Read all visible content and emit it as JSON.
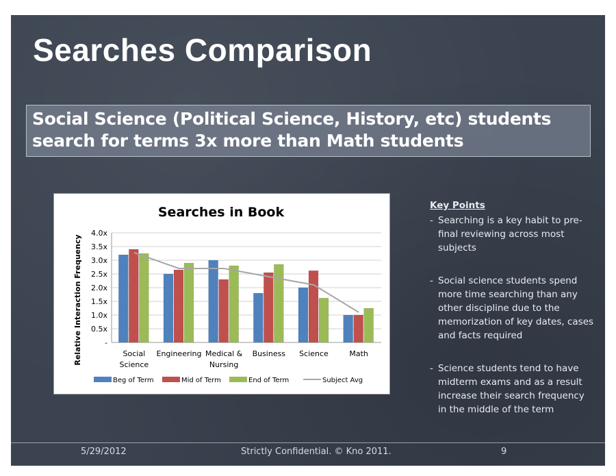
{
  "slide": {
    "title": "Searches Comparison",
    "subtitle_line1": "Social Science (Political Science, History, etc) students",
    "subtitle_line2": "search for terms 3x more than Math students"
  },
  "chart_data": {
    "type": "bar",
    "title": "Searches in Book",
    "ylabel": "Relative Interaction Frequency",
    "xlabel": "",
    "ylim": [
      0,
      4.0
    ],
    "yticks": [
      "-",
      "0.5x",
      "1.0x",
      "1.5x",
      "2.0x",
      "2.5x",
      "3.0x",
      "3.5x",
      "4.0x"
    ],
    "categories": [
      [
        "Social",
        "Science"
      ],
      [
        "Engineering"
      ],
      [
        "Medical &",
        "Nursing"
      ],
      [
        "Business"
      ],
      [
        "Science"
      ],
      [
        "Math"
      ]
    ],
    "series": [
      {
        "name": "Beg of Term",
        "color": "#4f81bd",
        "values": [
          3.2,
          2.5,
          3.0,
          1.8,
          2.0,
          1.0
        ]
      },
      {
        "name": "Mid of Term",
        "color": "#c0504d",
        "values": [
          3.4,
          2.65,
          2.3,
          2.55,
          2.62,
          1.0
        ]
      },
      {
        "name": "End of Term",
        "color": "#9bbb59",
        "values": [
          3.25,
          2.9,
          2.8,
          2.85,
          1.62,
          1.25
        ]
      }
    ],
    "line_series": {
      "name": "Subject Avg",
      "color": "#a6a6a6",
      "values": [
        3.28,
        2.7,
        2.7,
        2.4,
        2.1,
        1.1
      ]
    },
    "grid": true,
    "legend": "bottom"
  },
  "key_points": {
    "heading": "Key Points",
    "items": [
      {
        "dash": "-",
        "text": "Searching is a key habit to pre-final reviewing across most subjects"
      },
      {
        "dash": "-",
        "text": "Social science students spend more time searching than any other discipline due to the memorization of key dates, cases and facts required"
      },
      {
        "dash": "-",
        "text": "Science students tend to have midterm exams and as a result increase their search frequency in the middle of the term"
      }
    ]
  },
  "footer": {
    "date": "5/29/2012",
    "confidential": "Strictly Confidential. © Kno 2011.",
    "page": "9"
  }
}
